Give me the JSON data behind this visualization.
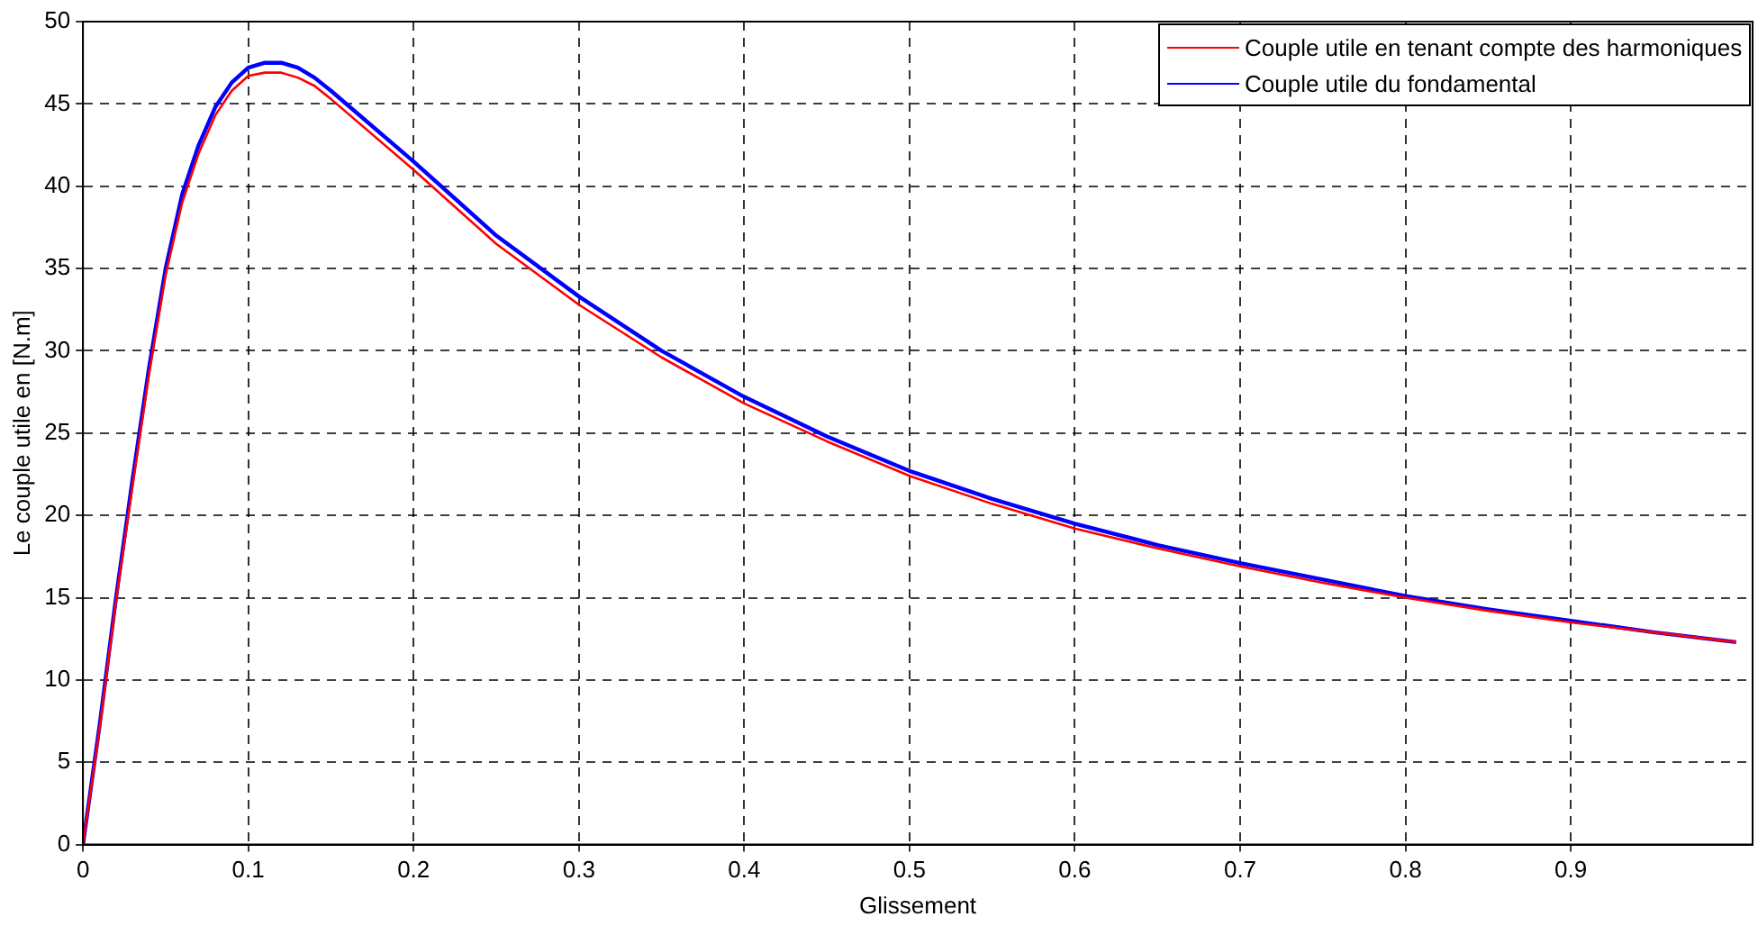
{
  "chart_data": {
    "type": "line",
    "xlabel": "Glissement",
    "ylabel": "Le couple utile en [N.m]",
    "x": [
      0,
      0.01,
      0.02,
      0.03,
      0.04,
      0.05,
      0.06,
      0.07,
      0.08,
      0.09,
      0.1,
      0.11,
      0.12,
      0.13,
      0.14,
      0.15,
      0.2,
      0.25,
      0.3,
      0.35,
      0.4,
      0.45,
      0.5,
      0.55,
      0.6,
      0.65,
      0.7,
      0.75,
      0.8,
      0.85,
      0.9,
      0.95,
      1.0
    ],
    "series": [
      {
        "name": "Couple utile en tenant compte des harmoniques",
        "color": "#ff0000",
        "values": [
          0,
          7,
          14.8,
          21.8,
          28.6,
          34.6,
          39,
          42,
          44.3,
          45.8,
          46.7,
          46.9,
          46.9,
          46.6,
          46.1,
          45.3,
          41,
          36.5,
          32.8,
          29.6,
          26.8,
          24.5,
          22.4,
          20.7,
          19.2,
          18,
          16.9,
          15.9,
          15,
          14.2,
          13.5,
          12.9,
          12.3
        ]
      },
      {
        "name": "Couple utile du fondamental",
        "color": "#0000ff",
        "values": [
          0,
          7.2,
          15,
          22.2,
          29,
          35,
          39.5,
          42.5,
          44.8,
          46.3,
          47.2,
          47.5,
          47.5,
          47.2,
          46.6,
          45.8,
          41.5,
          37,
          33.3,
          30,
          27.2,
          24.8,
          22.7,
          21,
          19.5,
          18.2,
          17.1,
          16.1,
          15.1,
          14.3,
          13.6,
          12.9,
          12.3
        ]
      }
    ],
    "xlim": [
      0,
      1.01
    ],
    "xticks": [
      0,
      0.1,
      0.2,
      0.3,
      0.4,
      0.5,
      0.6,
      0.7,
      0.8,
      0.9
    ],
    "ylim": [
      0,
      50
    ],
    "yticks": [
      0,
      5,
      10,
      15,
      20,
      25,
      30,
      35,
      40,
      45,
      50
    ],
    "grid": true,
    "legend": "top right",
    "line_style": "solid",
    "marker": "none"
  }
}
